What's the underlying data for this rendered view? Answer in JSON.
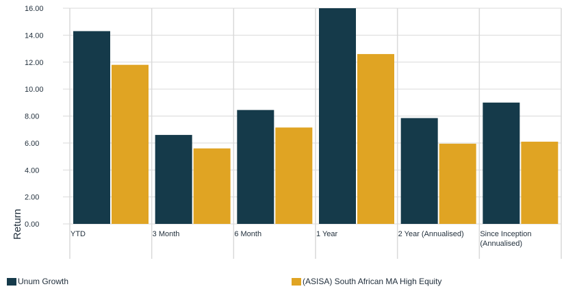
{
  "chart_data": {
    "type": "bar",
    "ylabel": "Return",
    "ylim": [
      0,
      16
    ],
    "yticks": [
      "0.00",
      "2.00",
      "4.00",
      "6.00",
      "8.00",
      "10.00",
      "12.00",
      "14.00",
      "16.00"
    ],
    "categories": [
      [
        "YTD"
      ],
      [
        "3 Month"
      ],
      [
        "6 Month"
      ],
      [
        "1 Year"
      ],
      [
        "2 Year (Annualised)"
      ],
      [
        "Since Inception",
        "(Annualised)"
      ]
    ],
    "series": [
      {
        "name": "Unum Growth",
        "color": "#153a4a",
        "values": [
          14.3,
          6.6,
          8.45,
          16.0,
          7.85,
          9.0
        ]
      },
      {
        "name": "(ASISA) South African MA High Equity",
        "color": "#e0a423",
        "values": [
          11.8,
          5.6,
          7.15,
          12.6,
          5.95,
          6.1
        ]
      }
    ],
    "grid": true,
    "legend_position": "bottom"
  }
}
